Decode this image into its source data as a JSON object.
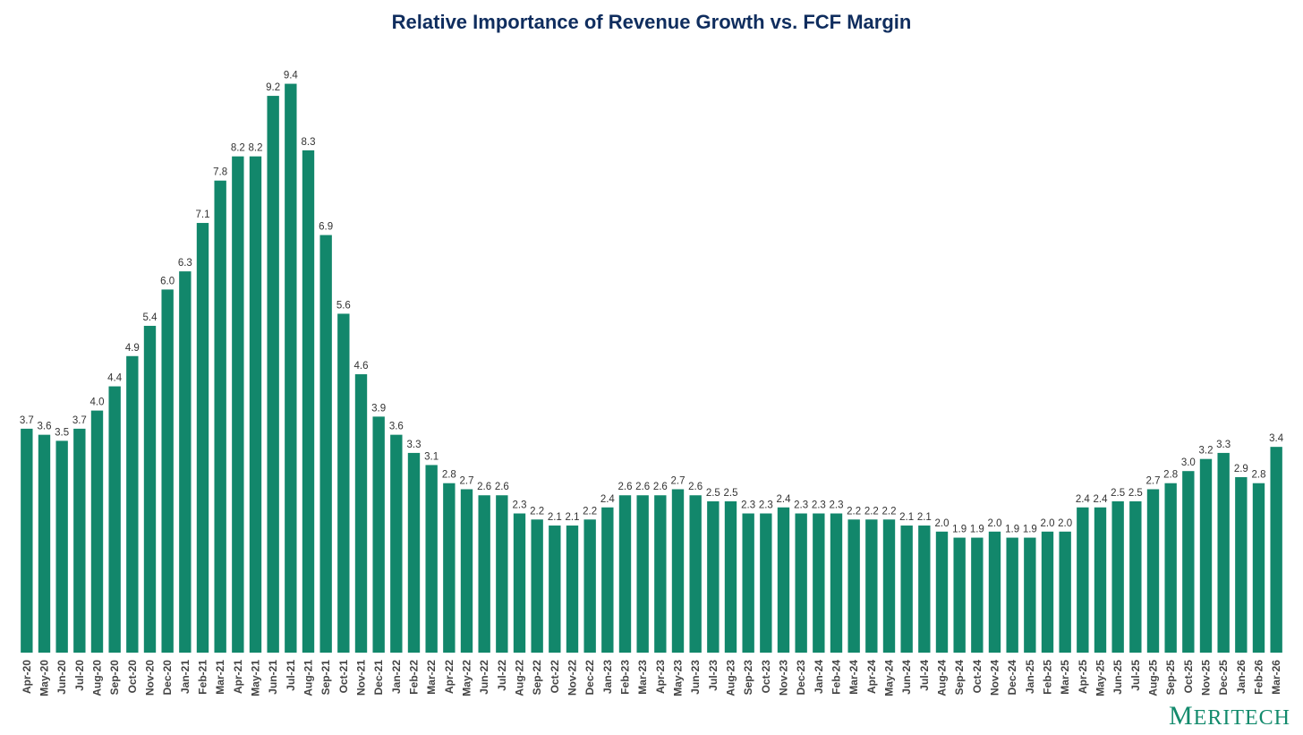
{
  "chart_data": {
    "type": "bar",
    "title": "Relative Importance of Revenue Growth vs. FCF Margin",
    "xlabel": "",
    "ylabel": "",
    "ylim": [
      0,
      10
    ],
    "grid": false,
    "legend": "none",
    "bar_color": "#12876b",
    "title_color": "#0f2d5e",
    "categories": [
      "Apr-20",
      "May-20",
      "Jun-20",
      "Jul-20",
      "Aug-20",
      "Sep-20",
      "Oct-20",
      "Nov-20",
      "Dec-20",
      "Jan-21",
      "Feb-21",
      "Mar-21",
      "Apr-21",
      "May-21",
      "Jun-21",
      "Jul-21",
      "Aug-21",
      "Sep-21",
      "Oct-21",
      "Nov-21",
      "Dec-21",
      "Jan-22",
      "Feb-22",
      "Mar-22",
      "Apr-22",
      "May-22",
      "Jun-22",
      "Jul-22",
      "Aug-22",
      "Sep-22",
      "Oct-22",
      "Nov-22",
      "Dec-22",
      "Jan-23",
      "Feb-23",
      "Mar-23",
      "Apr-23",
      "May-23",
      "Jun-23",
      "Jul-23",
      "Aug-23",
      "Sep-23",
      "Oct-23",
      "Nov-23",
      "Dec-23",
      "Jan-24",
      "Feb-24",
      "Mar-24",
      "Apr-24",
      "May-24",
      "Jun-24",
      "Jul-24",
      "Aug-24",
      "Sep-24",
      "Oct-24",
      "Nov-24",
      "Dec-24",
      "Jan-25",
      "Feb-25",
      "Mar-25",
      "Apr-25",
      "May-25",
      "Jun-25",
      "Jul-25",
      "Aug-25",
      "Sep-25",
      "Oct-25",
      "Nov-25",
      "Dec-25",
      "Jan-26",
      "Feb-26",
      "Mar-26"
    ],
    "values": [
      3.7,
      3.6,
      3.5,
      3.7,
      4.0,
      4.4,
      4.9,
      5.4,
      6.0,
      6.3,
      7.1,
      7.8,
      8.2,
      8.2,
      9.2,
      9.4,
      8.3,
      6.9,
      5.6,
      4.6,
      3.9,
      3.6,
      3.3,
      3.1,
      2.8,
      2.7,
      2.6,
      2.6,
      2.3,
      2.2,
      2.1,
      2.1,
      2.2,
      2.4,
      2.6,
      2.6,
      2.6,
      2.7,
      2.6,
      2.5,
      2.5,
      2.3,
      2.3,
      2.4,
      2.3,
      2.3,
      2.3,
      2.2,
      2.2,
      2.2,
      2.1,
      2.1,
      2.0,
      1.9,
      1.9,
      2.0,
      1.9,
      1.9,
      2.0,
      2.0,
      2.4,
      2.4,
      2.5,
      2.5,
      2.7,
      2.8,
      3.0,
      3.2,
      3.3,
      2.9,
      2.8,
      3.4
    ]
  },
  "brand": {
    "logo_text": "MERITECH",
    "logo_color": "#128a6c"
  }
}
